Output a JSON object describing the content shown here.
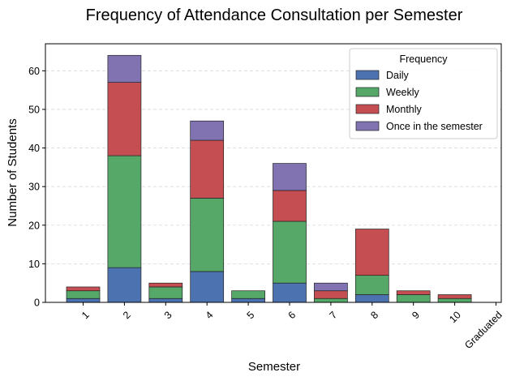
{
  "chart_data": {
    "type": "bar",
    "stacked": true,
    "title": "Frequency of Attendance Consultation per Semester",
    "xlabel": "Semester",
    "ylabel": "Number of Students",
    "categories": [
      "1",
      "2",
      "3",
      "4",
      "5",
      "6",
      "7",
      "8",
      "9",
      "10",
      "Graduated"
    ],
    "ylim": [
      0,
      67
    ],
    "yticks": [
      0,
      10,
      20,
      30,
      40,
      50,
      60
    ],
    "grid": true,
    "legend_title": "Frequency",
    "legend_position": "top-right",
    "series": [
      {
        "name": "Daily",
        "color": "#4c72b0",
        "values": [
          1,
          9,
          1,
          8,
          1,
          5,
          0,
          2,
          0,
          0,
          0
        ]
      },
      {
        "name": "Weekly",
        "color": "#55a868",
        "values": [
          2,
          29,
          3,
          19,
          2,
          16,
          1,
          5,
          2,
          1,
          0
        ]
      },
      {
        "name": "Monthly",
        "color": "#c44e52",
        "values": [
          1,
          19,
          1,
          15,
          0,
          8,
          2,
          12,
          1,
          1,
          0
        ]
      },
      {
        "name": "Once in the semester",
        "color": "#8172b2",
        "values": [
          0,
          7,
          0,
          5,
          0,
          7,
          2,
          0,
          0,
          0,
          0
        ]
      }
    ]
  }
}
